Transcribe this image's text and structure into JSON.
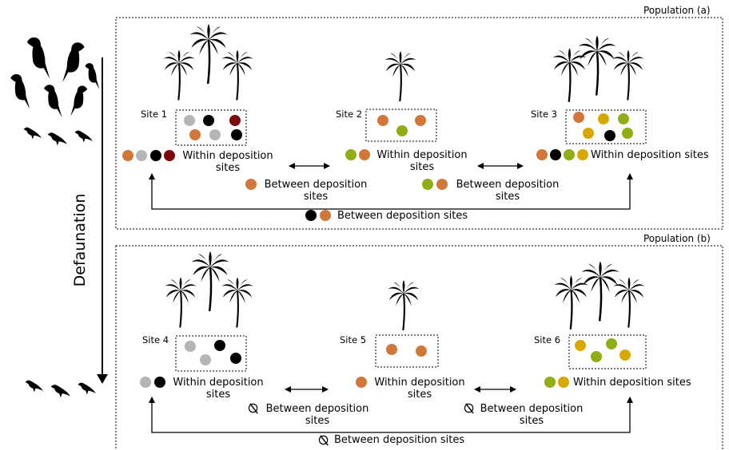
{
  "axis_label": "Defaunation",
  "populations": [
    {
      "label": "Population (a)",
      "sites": [
        {
          "label": "Site 1",
          "within": "Within deposition sites"
        },
        {
          "label": "Site 2",
          "within": "Within deposition sites"
        },
        {
          "label": "Site 3",
          "within": "Within deposition sites"
        }
      ],
      "between": [
        "Between deposition sites",
        "Between deposition sites",
        "Between deposition sites"
      ]
    },
    {
      "label": "Population (b)",
      "sites": [
        {
          "label": "Site 4",
          "within": "Within deposition sites"
        },
        {
          "label": "Site 5",
          "within": "Within deposition sites"
        },
        {
          "label": "Site 6",
          "within": "Within deposition sites"
        }
      ],
      "between": [
        "Between deposition sites",
        "Between deposition sites",
        "Between deposition sites"
      ]
    }
  ]
}
